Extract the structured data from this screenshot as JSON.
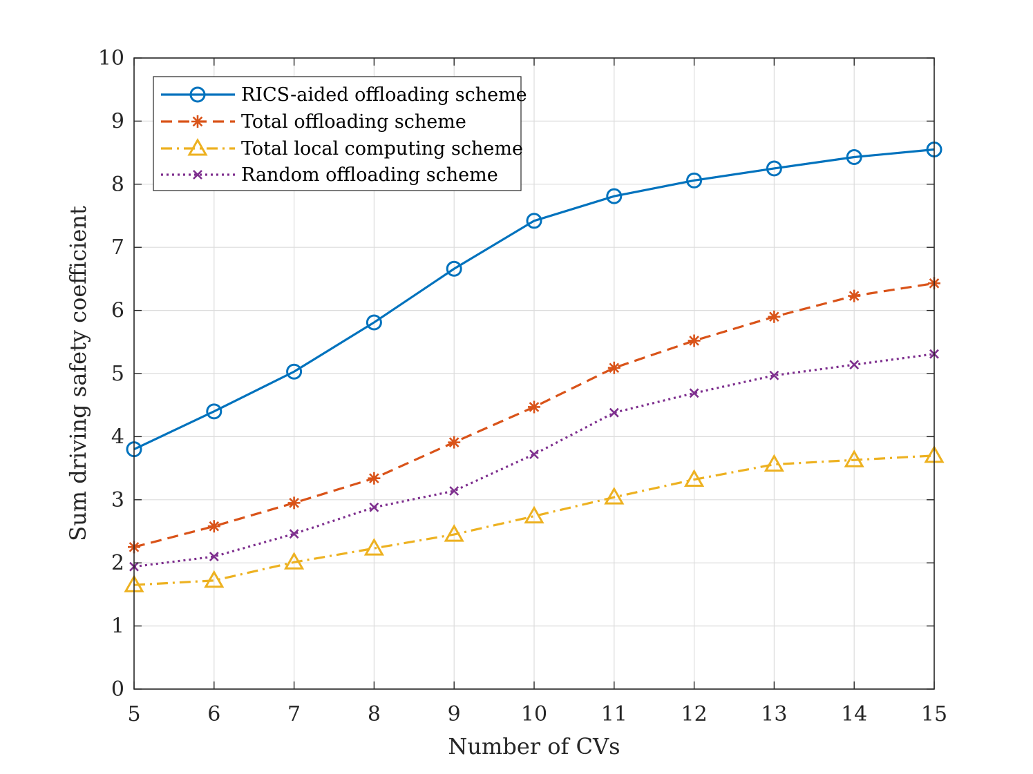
{
  "chart_data": {
    "type": "line",
    "xlabel": "Number of  CVs",
    "ylabel": "Sum  driving safety coefficient",
    "xlim": [
      5,
      15
    ],
    "ylim": [
      0,
      10
    ],
    "xticks": [
      5,
      6,
      7,
      8,
      9,
      10,
      11,
      12,
      13,
      14,
      15
    ],
    "yticks": [
      0,
      1,
      2,
      3,
      4,
      5,
      6,
      7,
      8,
      9,
      10
    ],
    "grid": true,
    "legend_position": "top-left",
    "x": [
      5,
      6,
      7,
      8,
      9,
      10,
      11,
      12,
      13,
      14,
      15
    ],
    "series": [
      {
        "name": "RICS-aided offloading scheme",
        "color": "#0072BD",
        "line_style": "solid",
        "marker": "circle",
        "values": [
          3.8,
          4.4,
          5.03,
          5.81,
          6.66,
          7.42,
          7.81,
          8.06,
          8.25,
          8.43,
          8.55
        ]
      },
      {
        "name": "Total offloading scheme",
        "color": "#D95319",
        "line_style": "dashed",
        "marker": "asterisk",
        "values": [
          2.25,
          2.58,
          2.95,
          3.34,
          3.91,
          4.47,
          5.09,
          5.52,
          5.9,
          6.23,
          6.43
        ]
      },
      {
        "name": "Total local computing scheme",
        "color": "#EDB120",
        "line_style": "dashdot",
        "marker": "triangle",
        "values": [
          1.65,
          1.72,
          2.01,
          2.23,
          2.45,
          2.74,
          3.04,
          3.32,
          3.56,
          3.63,
          3.7
        ]
      },
      {
        "name": "Random offloading scheme",
        "color": "#7E2F8E",
        "line_style": "dotted",
        "marker": "x",
        "values": [
          1.94,
          2.1,
          2.46,
          2.88,
          3.14,
          3.72,
          4.38,
          4.69,
          4.97,
          5.14,
          5.31
        ]
      }
    ]
  }
}
